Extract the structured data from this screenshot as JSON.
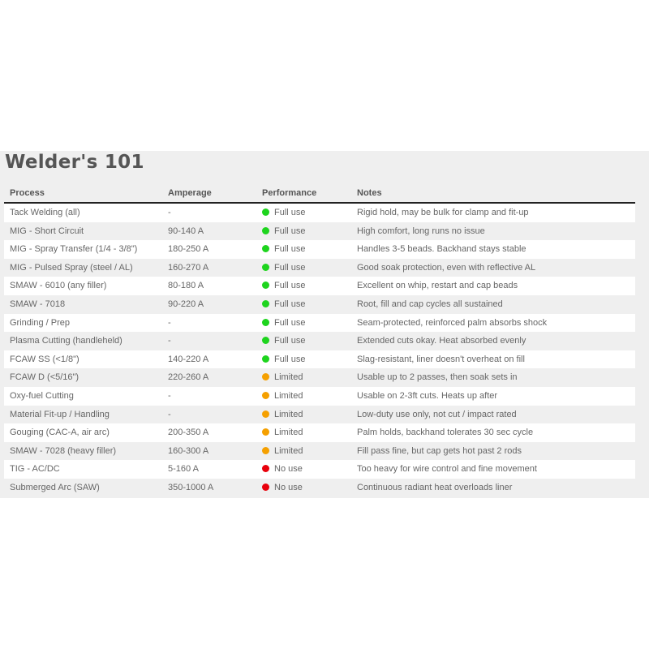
{
  "title": "Welder's 101",
  "columns": [
    "Process",
    "Amperage",
    "Performance",
    "Notes"
  ],
  "status_colors": {
    "Full use": "#1ed41e",
    "Limited": "#f5a000",
    "No use": "#e8000b"
  },
  "rows": [
    {
      "process": "Tack Welding (all)",
      "amperage": "-",
      "performance": "Full use",
      "notes": "Rigid hold, may be bulk for clamp and fit-up"
    },
    {
      "process": "MIG - Short Circuit",
      "amperage": "90-140 A",
      "performance": "Full use",
      "notes": "High comfort, long runs no issue"
    },
    {
      "process": "MIG - Spray Transfer (1/4 - 3/8\")",
      "amperage": "180-250 A",
      "performance": "Full use",
      "notes": "Handles 3-5 beads. Backhand stays stable"
    },
    {
      "process": "MIG - Pulsed Spray (steel / AL)",
      "amperage": "160-270 A",
      "performance": "Full use",
      "notes": "Good soak protection, even with reflective AL"
    },
    {
      "process": "SMAW - 6010 (any filler)",
      "amperage": "80-180 A",
      "performance": "Full use",
      "notes": "Excellent on whip, restart and cap beads"
    },
    {
      "process": "SMAW - 7018",
      "amperage": "90-220 A",
      "performance": "Full use",
      "notes": "Root, fill and cap cycles all sustained"
    },
    {
      "process": "Grinding / Prep",
      "amperage": "-",
      "performance": "Full use",
      "notes": "Seam-protected, reinforced palm absorbs shock"
    },
    {
      "process": "Plasma Cutting (handleheld)",
      "amperage": "-",
      "performance": "Full use",
      "notes": "Extended cuts okay. Heat absorbed evenly"
    },
    {
      "process": "FCAW SS (<1/8\")",
      "amperage": "140-220 A",
      "performance": "Full use",
      "notes": "Slag-resistant, liner doesn't overheat on fill"
    },
    {
      "process": "FCAW D (<5/16\")",
      "amperage": "220-260 A",
      "performance": "Limited",
      "notes": "Usable up to 2 passes, then soak sets in"
    },
    {
      "process": "Oxy-fuel Cutting",
      "amperage": "-",
      "performance": "Limited",
      "notes": "Usable on 2-3ft cuts. Heats up after"
    },
    {
      "process": "Material Fit-up / Handling",
      "amperage": "-",
      "performance": "Limited",
      "notes": "Low-duty use only, not cut / impact rated"
    },
    {
      "process": "Gouging (CAC-A, air arc)",
      "amperage": "200-350 A",
      "performance": "Limited",
      "notes": "Palm holds, backhand tolerates 30 sec cycle"
    },
    {
      "process": "SMAW - 7028 (heavy filler)",
      "amperage": "160-300 A",
      "performance": "Limited",
      "notes": "Fill pass fine, but cap gets hot past 2 rods"
    },
    {
      "process": "TIG - AC/DC",
      "amperage": "5-160 A",
      "performance": "No use",
      "notes": "Too heavy for wire control and fine movement"
    },
    {
      "process": "Submerged Arc (SAW)",
      "amperage": "350-1000 A",
      "performance": "No use",
      "notes": "Continuous radiant heat overloads liner"
    }
  ]
}
